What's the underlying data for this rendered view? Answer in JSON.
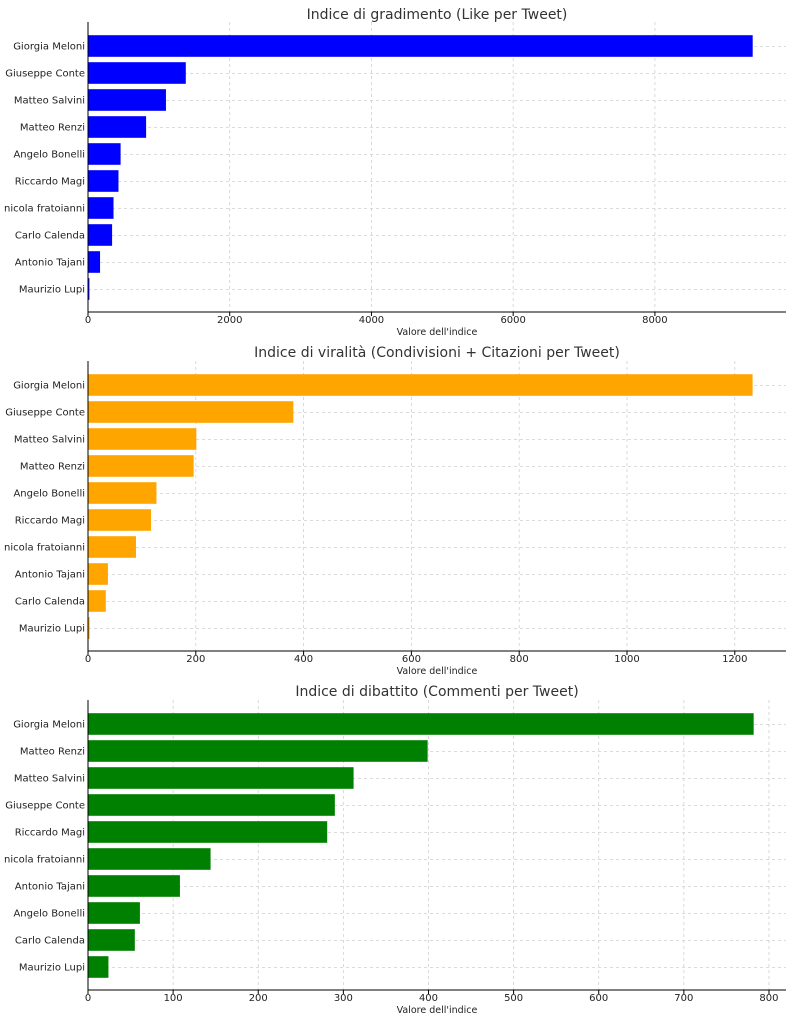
{
  "chart_data": [
    {
      "type": "bar",
      "orientation": "horizontal",
      "title": "Indice di gradimento (Like per Tweet)",
      "xlabel": "Valore dell'indice",
      "ylabel": "",
      "color": "#0000ff",
      "xlim": [
        0,
        9850
      ],
      "xticks": [
        0,
        2000,
        4000,
        6000,
        8000
      ],
      "grid": true,
      "categories": [
        "Giorgia Meloni",
        "Giuseppe Conte",
        "Matteo Salvini",
        "Matteo Renzi",
        "Angelo Bonelli",
        "Riccardo Magi",
        "nicola fratoianni",
        "Carlo Calenda",
        "Antonio Tajani",
        "Maurizio Lupi"
      ],
      "values": [
        9380,
        1380,
        1100,
        820,
        460,
        430,
        360,
        340,
        170,
        20
      ]
    },
    {
      "type": "bar",
      "orientation": "horizontal",
      "title": "Indice di viralità (Condivisioni + Citazioni per Tweet)",
      "xlabel": "Valore dell'indice",
      "ylabel": "",
      "color": "#ffa500",
      "xlim": [
        0,
        1295
      ],
      "xticks": [
        0,
        200,
        400,
        600,
        800,
        1000,
        1200
      ],
      "grid": true,
      "categories": [
        "Giorgia Meloni",
        "Giuseppe Conte",
        "Matteo Salvini",
        "Matteo Renzi",
        "Angelo Bonelli",
        "Riccardo Magi",
        "nicola fratoianni",
        "Antonio Tajani",
        "Carlo Calenda",
        "Maurizio Lupi"
      ],
      "values": [
        1233,
        381,
        201,
        196,
        127,
        117,
        89,
        37,
        33,
        3
      ]
    },
    {
      "type": "bar",
      "orientation": "horizontal",
      "title": "Indice di dibattito (Commenti per Tweet)",
      "xlabel": "Valore dell'indice",
      "ylabel": "",
      "color": "#008000",
      "xlim": [
        0,
        820
      ],
      "xticks": [
        0,
        100,
        200,
        300,
        400,
        500,
        600,
        700,
        800
      ],
      "grid": true,
      "categories": [
        "Giorgia Meloni",
        "Matteo Renzi",
        "Matteo Salvini",
        "Giuseppe Conte",
        "Riccardo Magi",
        "nicola fratoianni",
        "Antonio Tajani",
        "Angelo Bonelli",
        "Carlo Calenda",
        "Maurizio Lupi"
      ],
      "values": [
        782,
        399,
        312,
        290,
        281,
        144,
        108,
        61,
        55,
        24
      ]
    }
  ]
}
